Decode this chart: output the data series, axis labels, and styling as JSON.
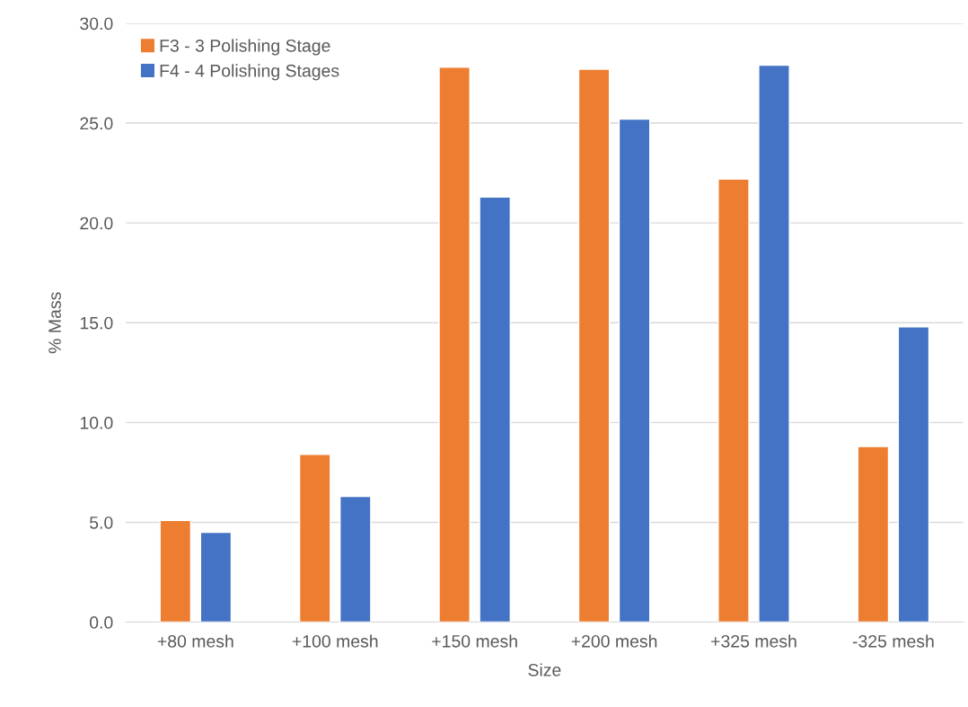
{
  "chart_data": {
    "type": "bar",
    "xlabel": "Size",
    "ylabel": "% Mass",
    "categories": [
      "+80 mesh",
      "+100 mesh",
      "+150 mesh",
      "+200 mesh",
      "+325 mesh",
      "-325 mesh"
    ],
    "series": [
      {
        "name": "F3 - 3 Polishing Stage",
        "color": "#ed7d31",
        "values": [
          5.1,
          8.4,
          27.8,
          27.7,
          22.2,
          8.8
        ]
      },
      {
        "name": "F4 - 4 Polishing Stages",
        "color": "#4472c4",
        "values": [
          4.5,
          6.3,
          21.3,
          25.2,
          27.9,
          14.8
        ]
      }
    ],
    "ylim": [
      0,
      30
    ],
    "yticks": [
      {
        "value": 0,
        "label": "0.0"
      },
      {
        "value": 5,
        "label": "5.0"
      },
      {
        "value": 10,
        "label": "10.0"
      },
      {
        "value": 15,
        "label": "15.0"
      },
      {
        "value": 20,
        "label": "20.0"
      },
      {
        "value": 25,
        "label": "25.0"
      },
      {
        "value": 30,
        "label": "30.0"
      }
    ],
    "grid": "y",
    "legend": "top left"
  }
}
